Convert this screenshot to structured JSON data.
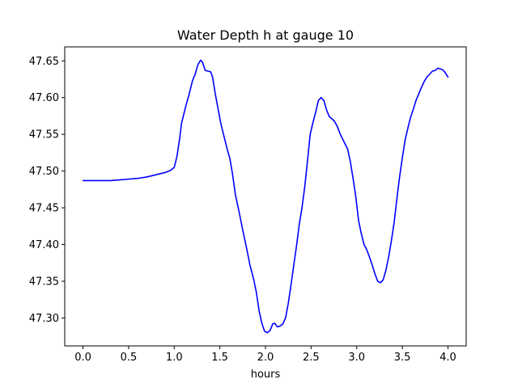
{
  "chart_data": {
    "type": "line",
    "title": "Water Depth h at gauge 10",
    "xlabel": "hours",
    "ylabel": "",
    "xlim": [
      -0.2,
      4.2
    ],
    "ylim": [
      47.262,
      47.669
    ],
    "xticks": [
      "0.0",
      "0.5",
      "1.0",
      "1.5",
      "2.0",
      "2.5",
      "3.0",
      "3.5",
      "4.0"
    ],
    "yticks": [
      "47.30",
      "47.35",
      "47.40",
      "47.45",
      "47.50",
      "47.55",
      "47.60",
      "47.65"
    ],
    "grid": false,
    "legend": "none",
    "series": [
      {
        "color": "#0000ff",
        "points": [
          [
            0.0,
            47.487
          ],
          [
            0.2,
            47.487
          ],
          [
            0.3,
            47.487
          ],
          [
            0.4,
            47.488
          ],
          [
            0.5,
            47.489
          ],
          [
            0.6,
            47.49
          ],
          [
            0.7,
            47.492
          ],
          [
            0.8,
            47.495
          ],
          [
            0.9,
            47.498
          ],
          [
            0.96,
            47.501
          ],
          [
            1.0,
            47.505
          ],
          [
            1.03,
            47.52
          ],
          [
            1.06,
            47.545
          ],
          [
            1.08,
            47.565
          ],
          [
            1.1,
            47.575
          ],
          [
            1.13,
            47.59
          ],
          [
            1.16,
            47.603
          ],
          [
            1.2,
            47.623
          ],
          [
            1.23,
            47.632
          ],
          [
            1.26,
            47.645
          ],
          [
            1.29,
            47.651
          ],
          [
            1.31,
            47.648
          ],
          [
            1.34,
            47.637
          ],
          [
            1.37,
            47.636
          ],
          [
            1.4,
            47.635
          ],
          [
            1.42,
            47.628
          ],
          [
            1.45,
            47.605
          ],
          [
            1.48,
            47.585
          ],
          [
            1.51,
            47.565
          ],
          [
            1.55,
            47.545
          ],
          [
            1.58,
            47.53
          ],
          [
            1.61,
            47.517
          ],
          [
            1.64,
            47.495
          ],
          [
            1.67,
            47.468
          ],
          [
            1.71,
            47.445
          ],
          [
            1.75,
            47.42
          ],
          [
            1.79,
            47.397
          ],
          [
            1.83,
            47.372
          ],
          [
            1.87,
            47.353
          ],
          [
            1.9,
            47.335
          ],
          [
            1.93,
            47.31
          ],
          [
            1.96,
            47.293
          ],
          [
            1.99,
            47.282
          ],
          [
            2.02,
            47.28
          ],
          [
            2.05,
            47.283
          ],
          [
            2.08,
            47.292
          ],
          [
            2.1,
            47.293
          ],
          [
            2.13,
            47.288
          ],
          [
            2.16,
            47.289
          ],
          [
            2.19,
            47.292
          ],
          [
            2.22,
            47.3
          ],
          [
            2.25,
            47.32
          ],
          [
            2.28,
            47.345
          ],
          [
            2.31,
            47.372
          ],
          [
            2.34,
            47.398
          ],
          [
            2.37,
            47.427
          ],
          [
            2.4,
            47.45
          ],
          [
            2.43,
            47.478
          ],
          [
            2.46,
            47.513
          ],
          [
            2.49,
            47.55
          ],
          [
            2.52,
            47.566
          ],
          [
            2.55,
            47.58
          ],
          [
            2.58,
            47.596
          ],
          [
            2.61,
            47.6
          ],
          [
            2.64,
            47.596
          ],
          [
            2.67,
            47.583
          ],
          [
            2.7,
            47.574
          ],
          [
            2.73,
            47.571
          ],
          [
            2.76,
            47.567
          ],
          [
            2.79,
            47.56
          ],
          [
            2.82,
            47.55
          ],
          [
            2.86,
            47.54
          ],
          [
            2.9,
            47.53
          ],
          [
            2.93,
            47.513
          ],
          [
            2.96,
            47.49
          ],
          [
            2.99,
            47.465
          ],
          [
            3.02,
            47.433
          ],
          [
            3.05,
            47.415
          ],
          [
            3.08,
            47.4
          ],
          [
            3.11,
            47.393
          ],
          [
            3.14,
            47.383
          ],
          [
            3.17,
            47.372
          ],
          [
            3.2,
            47.36
          ],
          [
            3.23,
            47.35
          ],
          [
            3.26,
            47.348
          ],
          [
            3.29,
            47.352
          ],
          [
            3.32,
            47.365
          ],
          [
            3.35,
            47.383
          ],
          [
            3.38,
            47.405
          ],
          [
            3.41,
            47.43
          ],
          [
            3.44,
            47.462
          ],
          [
            3.47,
            47.492
          ],
          [
            3.5,
            47.518
          ],
          [
            3.53,
            47.542
          ],
          [
            3.56,
            47.558
          ],
          [
            3.59,
            47.573
          ],
          [
            3.62,
            47.584
          ],
          [
            3.65,
            47.596
          ],
          [
            3.68,
            47.605
          ],
          [
            3.71,
            47.614
          ],
          [
            3.74,
            47.622
          ],
          [
            3.77,
            47.628
          ],
          [
            3.8,
            47.632
          ],
          [
            3.83,
            47.636
          ],
          [
            3.86,
            47.637
          ],
          [
            3.89,
            47.64
          ],
          [
            3.92,
            47.639
          ],
          [
            3.95,
            47.637
          ],
          [
            3.97,
            47.634
          ],
          [
            4.0,
            47.628
          ]
        ]
      }
    ]
  }
}
